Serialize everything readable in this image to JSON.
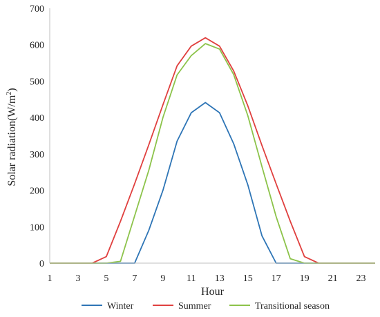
{
  "chart_data": {
    "type": "line",
    "title": "",
    "xlabel": "Hour",
    "ylabel": "Solar radiation(W/m",
    "ylabel_superscript": "2",
    "ylabel_suffix": ")",
    "xlim": [
      1,
      24
    ],
    "ylim": [
      0,
      700
    ],
    "x_ticks": [
      1,
      3,
      5,
      7,
      9,
      11,
      13,
      15,
      17,
      19,
      21,
      23
    ],
    "y_ticks": [
      0,
      100,
      200,
      300,
      400,
      500,
      600,
      700
    ],
    "grid": false,
    "legend_position": "bottom",
    "x": [
      1,
      2,
      3,
      4,
      5,
      6,
      7,
      8,
      9,
      10,
      11,
      12,
      13,
      14,
      15,
      16,
      17,
      18,
      19,
      20,
      21,
      22,
      23,
      24
    ],
    "series": [
      {
        "name": "Winter",
        "color": "#2e75b6",
        "values": [
          0,
          0,
          0,
          0,
          0,
          0,
          0,
          90,
          200,
          335,
          413,
          441,
          413,
          328,
          215,
          75,
          0,
          0,
          0,
          0,
          0,
          0,
          0,
          0
        ]
      },
      {
        "name": "Summer",
        "color": "#e0403f",
        "values": [
          0,
          0,
          0,
          0,
          18,
          115,
          218,
          325,
          435,
          542,
          596,
          619,
          596,
          528,
          432,
          323,
          218,
          115,
          18,
          0,
          0,
          0,
          0,
          0
        ]
      },
      {
        "name": "Transitional season",
        "color": "#8cc34a",
        "values": [
          0,
          0,
          0,
          0,
          0,
          5,
          130,
          255,
          400,
          517,
          570,
          603,
          588,
          518,
          405,
          265,
          128,
          12,
          0,
          0,
          0,
          0,
          0,
          0
        ]
      }
    ]
  }
}
